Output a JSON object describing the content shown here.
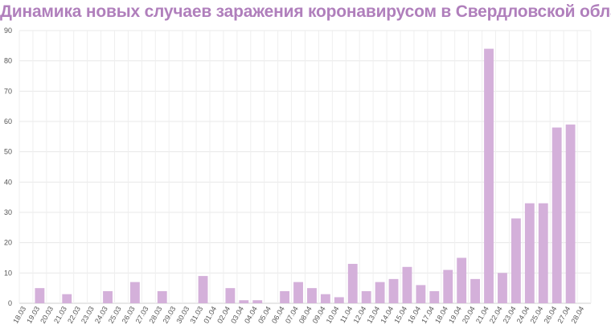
{
  "chart_data": {
    "type": "bar",
    "title": "Динамика новых случаев заражения коронавирусом в Свердловской области",
    "xlabel": "",
    "ylabel": "",
    "ylim": [
      0,
      90
    ],
    "yticks": [
      0,
      10,
      20,
      30,
      40,
      50,
      60,
      70,
      80,
      90
    ],
    "grid": true,
    "legend": "none",
    "bar_color": "#d4b0da",
    "title_color": "#b07fbc",
    "categories": [
      "18.03",
      "19.03",
      "20.03",
      "21.03",
      "22.03",
      "23.03",
      "24.03",
      "25.03",
      "26.03",
      "27.03",
      "28.03",
      "29.03",
      "30.03",
      "31.03",
      "01.04",
      "02.04",
      "03.04",
      "04.04",
      "05.04",
      "06.04",
      "07.04",
      "08.04",
      "09.04",
      "10.04",
      "11.04",
      "12.04",
      "13.04",
      "14.04",
      "15.04",
      "16.04",
      "17.04",
      "18.04",
      "19.04",
      "20.04",
      "21.04",
      "22.04",
      "23.04",
      "24.04",
      "25.04",
      "26.04",
      "27.04",
      "28.04"
    ],
    "values": [
      0,
      5,
      0,
      3,
      0,
      0,
      4,
      0,
      7,
      0,
      4,
      0,
      0,
      9,
      0,
      5,
      1,
      1,
      0,
      4,
      7,
      5,
      3,
      2,
      13,
      4,
      7,
      8,
      12,
      6,
      4,
      11,
      15,
      8,
      84,
      10,
      28,
      33,
      33,
      58,
      59,
      0
    ]
  }
}
